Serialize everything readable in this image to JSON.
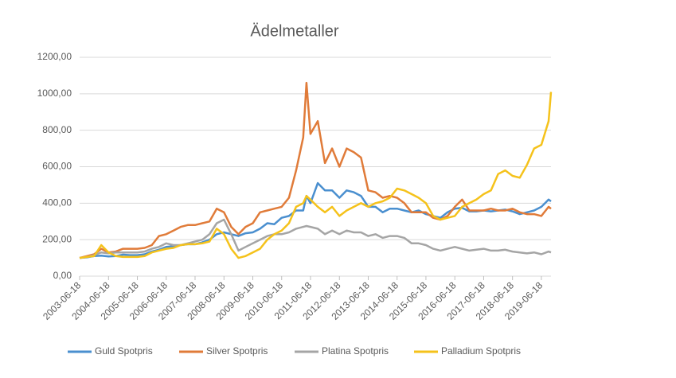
{
  "chart_data": {
    "type": "line",
    "title": "Ädelmetaller",
    "x": [
      "2003-06-18",
      "2003-09-18",
      "2003-12-18",
      "2004-03-18",
      "2004-06-18",
      "2004-09-18",
      "2004-12-18",
      "2005-03-18",
      "2005-06-18",
      "2005-09-18",
      "2005-12-18",
      "2006-03-18",
      "2006-06-18",
      "2006-09-18",
      "2006-12-18",
      "2007-03-18",
      "2007-06-18",
      "2007-09-18",
      "2007-12-18",
      "2008-03-18",
      "2008-06-18",
      "2008-09-18",
      "2008-12-18",
      "2009-03-18",
      "2009-06-18",
      "2009-09-18",
      "2009-12-18",
      "2010-03-18",
      "2010-06-18",
      "2010-09-18",
      "2010-12-18",
      "2011-03-18",
      "2011-04-28",
      "2011-06-18",
      "2011-09-18",
      "2011-12-18",
      "2012-03-18",
      "2012-06-18",
      "2012-09-18",
      "2012-12-18",
      "2013-03-18",
      "2013-06-18",
      "2013-09-18",
      "2013-12-18",
      "2014-03-18",
      "2014-06-18",
      "2014-09-18",
      "2014-12-18",
      "2015-03-18",
      "2015-06-18",
      "2015-09-18",
      "2015-12-18",
      "2016-03-18",
      "2016-06-18",
      "2016-09-18",
      "2016-12-18",
      "2017-03-18",
      "2017-06-18",
      "2017-09-18",
      "2017-12-18",
      "2018-03-18",
      "2018-06-18",
      "2018-09-18",
      "2018-12-18",
      "2019-03-18",
      "2019-06-18",
      "2019-09-18",
      "2019-10-18"
    ],
    "series": [
      {
        "name": "Guld Spotpris",
        "color": "#4a8fcf",
        "values": [
          100,
          103,
          110,
          112,
          108,
          110,
          118,
          115,
          115,
          120,
          135,
          145,
          160,
          165,
          170,
          175,
          175,
          185,
          200,
          230,
          240,
          230,
          220,
          235,
          240,
          260,
          290,
          285,
          320,
          330,
          360,
          360,
          440,
          400,
          510,
          470,
          470,
          430,
          470,
          460,
          440,
          380,
          380,
          350,
          370,
          370,
          360,
          350,
          360,
          340,
          330,
          320,
          350,
          370,
          375,
          355,
          355,
          360,
          355,
          360,
          365,
          355,
          340,
          350,
          360,
          380,
          420,
          410
        ]
      },
      {
        "name": "Silver Spotpris",
        "color": "#e07b39",
        "values": [
          100,
          110,
          120,
          150,
          130,
          135,
          150,
          150,
          150,
          155,
          170,
          220,
          230,
          250,
          270,
          280,
          280,
          290,
          300,
          370,
          350,
          270,
          230,
          270,
          290,
          350,
          360,
          370,
          380,
          430,
          580,
          760,
          1060,
          780,
          850,
          620,
          700,
          600,
          700,
          680,
          650,
          470,
          460,
          430,
          440,
          430,
          400,
          350,
          350,
          350,
          320,
          310,
          330,
          380,
          420,
          360,
          360,
          360,
          370,
          360,
          360,
          370,
          350,
          340,
          340,
          330,
          380,
          370
        ]
      },
      {
        "name": "Platina Spotpris",
        "color": "#a5a5a5",
        "values": [
          100,
          105,
          115,
          130,
          125,
          130,
          130,
          130,
          130,
          135,
          150,
          160,
          180,
          170,
          170,
          180,
          190,
          200,
          230,
          290,
          310,
          230,
          140,
          160,
          180,
          200,
          220,
          230,
          230,
          240,
          260,
          270,
          275,
          270,
          260,
          230,
          250,
          230,
          250,
          240,
          240,
          220,
          230,
          210,
          220,
          220,
          210,
          180,
          180,
          170,
          150,
          140,
          150,
          160,
          150,
          140,
          145,
          150,
          140,
          140,
          145,
          135,
          130,
          125,
          130,
          120,
          135,
          130
        ]
      },
      {
        "name": "Palladium Spotpris",
        "color": "#f5c21b",
        "values": [
          100,
          105,
          110,
          170,
          130,
          110,
          105,
          105,
          105,
          110,
          130,
          140,
          150,
          155,
          170,
          175,
          175,
          180,
          190,
          260,
          230,
          150,
          100,
          110,
          130,
          150,
          200,
          230,
          250,
          290,
          380,
          400,
          440,
          420,
          380,
          350,
          380,
          330,
          360,
          380,
          400,
          380,
          400,
          410,
          430,
          480,
          470,
          450,
          430,
          400,
          330,
          310,
          320,
          330,
          380,
          400,
          420,
          450,
          470,
          560,
          580,
          550,
          540,
          610,
          700,
          720,
          850,
          1010
        ]
      }
    ],
    "xlim": [
      "2003-06-18",
      "2019-10-18"
    ],
    "xticks": [
      "2003-06-18",
      "2004-06-18",
      "2005-06-18",
      "2006-06-18",
      "2007-06-18",
      "2008-06-18",
      "2009-06-18",
      "2010-06-18",
      "2011-06-18",
      "2012-06-18",
      "2013-06-18",
      "2014-06-18",
      "2015-06-18",
      "2016-06-18",
      "2017-06-18",
      "2018-06-18",
      "2019-06-18"
    ],
    "ylim": [
      0,
      1200
    ],
    "yticks": [
      {
        "value": 0,
        "label": "0,00"
      },
      {
        "value": 200,
        "label": "200,00"
      },
      {
        "value": 400,
        "label": "400,00"
      },
      {
        "value": 600,
        "label": "600,00"
      },
      {
        "value": 800,
        "label": "800,00"
      },
      {
        "value": 1000,
        "label": "1000,00"
      },
      {
        "value": 1200,
        "label": "1200,00"
      }
    ],
    "grid": true,
    "legend": "bottom"
  }
}
